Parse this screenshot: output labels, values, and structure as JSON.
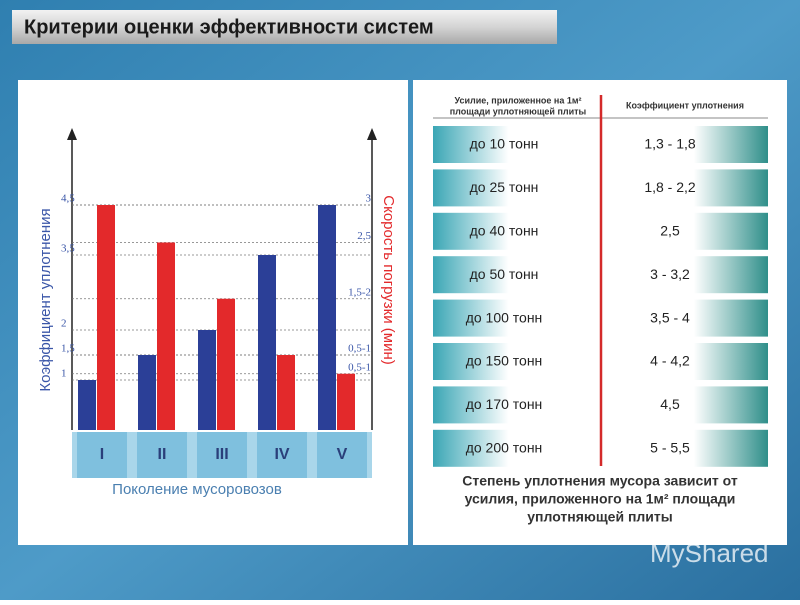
{
  "title": "Критерии оценки эффективности систем",
  "chart_data": {
    "type": "bar",
    "categories": [
      "I",
      "II",
      "III",
      "IV",
      "V"
    ],
    "x_label": "Поколение мусоровозов",
    "y_label": "Коэффициент уплотнения",
    "y2_label": "Скорость погрузки (мин)",
    "series": [
      {
        "name": "Коэффициент уплотнения",
        "color": "#2b3f97",
        "values": [
          1,
          1.5,
          2,
          3.5,
          4.5
        ]
      },
      {
        "name": "Скорость погрузки (мин)",
        "color": "#e3292b",
        "axis": "y2",
        "values": [
          3,
          2.5,
          1.75,
          1,
          0.75
        ]
      }
    ],
    "ylim": [
      0,
      6
    ],
    "yticks": [
      1,
      {
        "value": 1.5,
        "label": "1,5"
      },
      2,
      {
        "value": 3.5,
        "label": "3,5"
      },
      {
        "value": 4.5,
        "label": "4,5"
      }
    ],
    "y2lim": [
      0,
      4
    ],
    "y2ticks": [
      {
        "value": 0.75,
        "label": "0,5-1"
      },
      {
        "value": 1,
        "label": "0,5-1"
      },
      {
        "value": 1.75,
        "label": "1,5-2"
      },
      {
        "value": 2.5,
        "label": "2,5"
      },
      3
    ],
    "grid": true
  },
  "table": {
    "header": {
      "force": [
        "Усилие, приложенное на 1м²",
        "площади уплотняющей плиты"
      ],
      "coefficient": "Коэффициент уплотнения"
    },
    "rows": [
      [
        "до 10 тонн",
        "1,3 - 1,8"
      ],
      [
        "до 25 тонн",
        "1,8 - 2,2"
      ],
      [
        "до 40 тонн",
        "2,5"
      ],
      [
        "до 50 тонн",
        "3 - 3,2"
      ],
      [
        "до 100 тонн",
        "3,5 - 4"
      ],
      [
        "до 150 тонн",
        "4 - 4,2"
      ],
      [
        "до 170 тонн",
        "4,5"
      ],
      [
        "до 200 тонн",
        "5 - 5,5"
      ]
    ]
  },
  "caption": [
    "Степень уплотнения мусора зависит от",
    "усилия, приложенного на 1м² площади",
    "уплотняющей плиты"
  ],
  "watermark": "MyShared"
}
